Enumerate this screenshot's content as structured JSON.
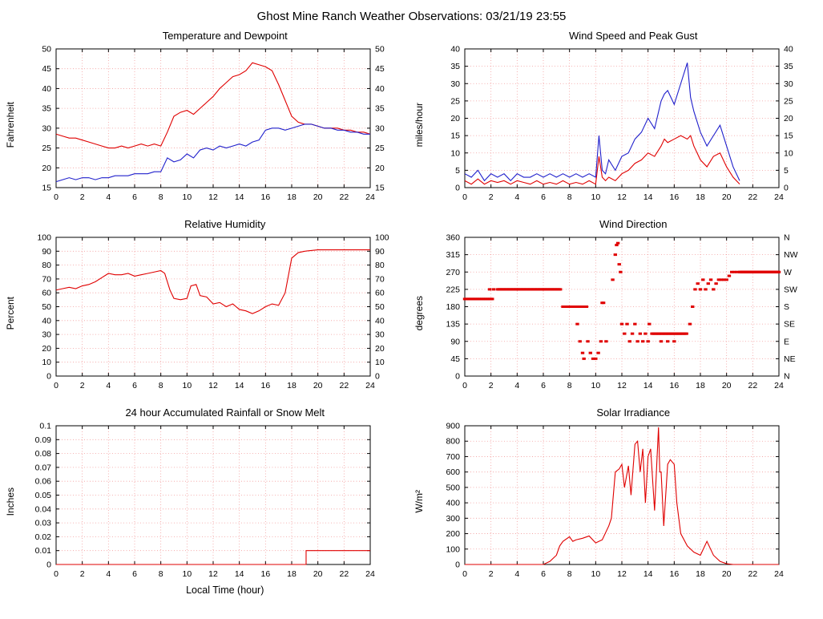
{
  "page_title": "Ghost Mine Ranch Weather Observations: 03/21/19 23:55",
  "colors": {
    "grid": "#f29b9b",
    "frame": "#000000",
    "red": "#e00000",
    "blue": "#2020cc"
  },
  "chart_data": [
    {
      "title": "Temperature and Dewpoint",
      "ylabel": "Fahrenheit",
      "type": "line",
      "xlim": [
        0,
        24
      ],
      "xticks": [
        0,
        2,
        4,
        6,
        8,
        10,
        12,
        14,
        16,
        18,
        20,
        22,
        24
      ],
      "ylim": [
        15,
        50
      ],
      "yticks": [
        15,
        20,
        25,
        30,
        35,
        40,
        45,
        50
      ],
      "right_labels": true,
      "series": [
        {
          "name": "Temperature",
          "color": "#e00000",
          "x0": 0,
          "dx": 0.5,
          "y": [
            28.5,
            28,
            27.5,
            27.5,
            27,
            26.5,
            26,
            25.5,
            25,
            25,
            25.5,
            25,
            25.5,
            26,
            25.5,
            26,
            25.5,
            29,
            33,
            34,
            34.5,
            33.5,
            35,
            36.5,
            38,
            40,
            41.5,
            43,
            43.5,
            44.5,
            46.5,
            46,
            45.5,
            44.5,
            41,
            37,
            33,
            31.5,
            31,
            31,
            30.5,
            30,
            30,
            30,
            29.5,
            29.5,
            29,
            29,
            28.5
          ]
        },
        {
          "name": "Dewpoint",
          "color": "#2020cc",
          "x0": 0,
          "dx": 0.5,
          "y": [
            16.5,
            17,
            17.5,
            17,
            17.5,
            17.5,
            17,
            17.5,
            17.5,
            18,
            18,
            18,
            18.5,
            18.5,
            18.5,
            19,
            19,
            22.5,
            21.5,
            22,
            23.5,
            22.5,
            24.5,
            25,
            24.5,
            25.5,
            25,
            25.5,
            26,
            25.5,
            26.5,
            27,
            29.5,
            30,
            30,
            29.5,
            30,
            30.5,
            31,
            31,
            30.5,
            30,
            30,
            29.5,
            29.5,
            29,
            29,
            28.5,
            28.5
          ]
        }
      ]
    },
    {
      "title": "Wind Speed and Peak Gust",
      "ylabel": "miles/hour",
      "type": "line",
      "xlim": [
        0,
        24
      ],
      "xticks": [
        0,
        2,
        4,
        6,
        8,
        10,
        12,
        14,
        16,
        18,
        20,
        22,
        24
      ],
      "ylim": [
        0,
        40
      ],
      "yticks": [
        0,
        5,
        10,
        15,
        20,
        25,
        30,
        35,
        40
      ],
      "right_labels": true,
      "series": [
        {
          "name": "Wind Speed",
          "color": "#e00000",
          "x": [
            0,
            0.5,
            1,
            1.5,
            2,
            2.5,
            3,
            3.5,
            4,
            4.5,
            5,
            5.5,
            6,
            6.5,
            7,
            7.5,
            8,
            8.5,
            9,
            9.5,
            10,
            10.25,
            10.5,
            10.75,
            11,
            11.5,
            12,
            12.5,
            13,
            13.5,
            14,
            14.5,
            15,
            15.25,
            15.5,
            16,
            16.5,
            17,
            17.25,
            17.5,
            18,
            18.5,
            19,
            19.5,
            20,
            20.5,
            21
          ],
          "y": [
            2,
            1,
            2.5,
            1,
            2,
            1.5,
            2,
            1,
            2,
            1.5,
            1,
            2,
            1,
            1.5,
            1,
            2,
            1,
            1.5,
            1,
            2,
            1,
            9,
            3,
            2,
            3,
            2,
            4,
            5,
            7,
            8,
            10,
            9,
            12,
            14,
            13,
            14,
            15,
            14,
            15,
            12,
            8,
            6,
            9,
            10,
            6,
            3,
            1
          ]
        },
        {
          "name": "Peak Gust",
          "color": "#2020cc",
          "x": [
            0,
            0.5,
            1,
            1.5,
            2,
            2.5,
            3,
            3.5,
            4,
            4.5,
            5,
            5.5,
            6,
            6.5,
            7,
            7.5,
            8,
            8.5,
            9,
            9.5,
            10,
            10.25,
            10.5,
            10.75,
            11,
            11.5,
            12,
            12.5,
            13,
            13.5,
            14,
            14.5,
            15,
            15.25,
            15.5,
            16,
            16.5,
            17,
            17.25,
            17.5,
            18,
            18.5,
            19,
            19.5,
            20,
            20.5,
            21
          ],
          "y": [
            4,
            3,
            5,
            2,
            4,
            3,
            4,
            2,
            4,
            3,
            3,
            4,
            3,
            4,
            3,
            4,
            3,
            4,
            3,
            4,
            3,
            15,
            5,
            4,
            8,
            5,
            9,
            10,
            14,
            16,
            20,
            17,
            25,
            27,
            28,
            24,
            30,
            36,
            26,
            22,
            16,
            12,
            15,
            18,
            12,
            6,
            2
          ]
        }
      ]
    },
    {
      "title": "Relative Humidity",
      "ylabel": "Percent",
      "type": "line",
      "xlim": [
        0,
        24
      ],
      "xticks": [
        0,
        2,
        4,
        6,
        8,
        10,
        12,
        14,
        16,
        18,
        20,
        22,
        24
      ],
      "ylim": [
        0,
        100
      ],
      "yticks": [
        0,
        10,
        20,
        30,
        40,
        50,
        60,
        70,
        80,
        90,
        100
      ],
      "right_labels": true,
      "series": [
        {
          "name": "Relative Humidity",
          "color": "#e00000",
          "x": [
            0,
            0.5,
            1,
            1.5,
            2,
            2.5,
            3,
            3.5,
            4,
            4.5,
            5,
            5.5,
            6,
            6.5,
            7,
            7.5,
            8,
            8.3,
            8.7,
            9,
            9.5,
            10,
            10.3,
            10.7,
            11,
            11.5,
            12,
            12.5,
            13,
            13.5,
            14,
            14.5,
            15,
            15.5,
            16,
            16.5,
            17,
            17.5,
            18,
            18.5,
            19,
            20,
            21,
            22,
            23,
            24
          ],
          "y": [
            62,
            63,
            64,
            63,
            65,
            66,
            68,
            71,
            74,
            73,
            73,
            74,
            72,
            73,
            74,
            75,
            76,
            74,
            62,
            56,
            55,
            56,
            65,
            66,
            58,
            57,
            52,
            53,
            50,
            52,
            48,
            47,
            45,
            47,
            50,
            52,
            51,
            60,
            85,
            89,
            90,
            91,
            91,
            91,
            91,
            91
          ]
        }
      ]
    },
    {
      "title": "Wind Direction",
      "ylabel": "degrees",
      "type": "scatter",
      "xlim": [
        0,
        24
      ],
      "xticks": [
        0,
        2,
        4,
        6,
        8,
        10,
        12,
        14,
        16,
        18,
        20,
        22,
        24
      ],
      "ylim": [
        0,
        360
      ],
      "yticks": [
        0,
        45,
        90,
        135,
        180,
        225,
        270,
        315,
        360
      ],
      "right_labels": [
        "N",
        "NE",
        "E",
        "SE",
        "S",
        "SW",
        "W",
        "NW",
        "N"
      ],
      "series": [
        {
          "name": "Wind Direction",
          "color": "#e00000",
          "runs": [
            {
              "x0": 0.0,
              "x1": 2.1,
              "step": 0.1,
              "y": 200
            },
            {
              "x0": 2.5,
              "x1": 7.3,
              "step": 0.08,
              "y": 225
            },
            {
              "x0": 7.5,
              "x1": 9.3,
              "step": 0.1,
              "y": 180
            },
            {
              "x0": 14.3,
              "x1": 17.0,
              "step": 0.08,
              "y": 110
            },
            {
              "x0": 21.0,
              "x1": 24.0,
              "step": 0.05,
              "y": 270
            }
          ],
          "x": [
            1.9,
            2.2,
            8.6,
            8.8,
            9.0,
            9.1,
            9.4,
            9.6,
            9.8,
            10.0,
            10.2,
            10.4,
            10.5,
            10.6,
            10.8,
            11.3,
            11.5,
            11.6,
            11.7,
            11.8,
            11.9,
            12.0,
            12.2,
            12.4,
            12.6,
            12.8,
            13.0,
            13.2,
            13.4,
            13.6,
            13.8,
            14.0,
            14.1,
            15.0,
            15.5,
            16.0,
            17.2,
            17.4,
            17.6,
            17.8,
            18.0,
            18.2,
            18.4,
            18.6,
            18.8,
            19.0,
            19.2,
            19.4,
            19.6,
            19.8,
            20.0,
            20.2,
            20.4,
            20.6,
            20.8
          ],
          "y": [
            225,
            225,
            135,
            90,
            60,
            45,
            90,
            60,
            45,
            45,
            60,
            90,
            190,
            190,
            90,
            250,
            315,
            340,
            345,
            290,
            270,
            135,
            110,
            135,
            90,
            110,
            135,
            90,
            110,
            90,
            110,
            90,
            135,
            90,
            90,
            90,
            135,
            180,
            225,
            240,
            225,
            250,
            225,
            240,
            250,
            225,
            240,
            250,
            250,
            250,
            250,
            260,
            270,
            270,
            270
          ]
        }
      ]
    },
    {
      "title": "24 hour Accumulated Rainfall or Snow Melt",
      "ylabel": "Inches",
      "xlabel": "Local Time (hour)",
      "type": "line",
      "xlim": [
        0,
        24
      ],
      "xticks": [
        0,
        2,
        4,
        6,
        8,
        10,
        12,
        14,
        16,
        18,
        20,
        22,
        24
      ],
      "ylim": [
        0,
        0.1
      ],
      "yticks": [
        0,
        0.01,
        0.02,
        0.03,
        0.04,
        0.05,
        0.06,
        0.07,
        0.08,
        0.09,
        0.1
      ],
      "ytick_labels": [
        "0",
        "0.01",
        "0.02",
        "0.03",
        "0.04",
        "0.05",
        "0.06",
        "0.07",
        "0.08",
        "0.09",
        "0.1"
      ],
      "right_labels": false,
      "series": [
        {
          "name": "Rainfall",
          "color": "#e00000",
          "x": [
            0,
            19.1,
            19.1,
            24
          ],
          "y": [
            0,
            0,
            0.01,
            0.01
          ]
        }
      ]
    },
    {
      "title": "Solar Irradiance",
      "ylabel": "W/m²",
      "type": "line",
      "xlim": [
        0,
        24
      ],
      "xticks": [
        0,
        2,
        4,
        6,
        8,
        10,
        12,
        14,
        16,
        18,
        20,
        22,
        24
      ],
      "ylim": [
        0,
        900
      ],
      "yticks": [
        0,
        100,
        200,
        300,
        400,
        500,
        600,
        700,
        800,
        900
      ],
      "right_labels": false,
      "series": [
        {
          "name": "Solar Irradiance",
          "color": "#e00000",
          "x": [
            0,
            1,
            2,
            3,
            4,
            5,
            6,
            6.5,
            7,
            7.25,
            7.5,
            8,
            8.25,
            8.5,
            9,
            9.5,
            10,
            10.25,
            10.5,
            11,
            11.2,
            11.5,
            11.8,
            12,
            12.2,
            12.5,
            12.7,
            13,
            13.2,
            13.4,
            13.6,
            13.8,
            14,
            14.2,
            14.5,
            14.8,
            14.9,
            15,
            15.2,
            15.5,
            15.7,
            16,
            16.2,
            16.5,
            17,
            17.5,
            18,
            18.5,
            19,
            19.5,
            20,
            20.5,
            21,
            22,
            23,
            24
          ],
          "y": [
            0,
            0,
            0,
            0,
            0,
            0,
            0,
            20,
            60,
            120,
            150,
            180,
            150,
            160,
            170,
            185,
            140,
            150,
            160,
            250,
            300,
            600,
            620,
            650,
            500,
            640,
            450,
            780,
            800,
            600,
            750,
            400,
            700,
            750,
            350,
            890,
            600,
            600,
            250,
            650,
            680,
            650,
            400,
            200,
            120,
            80,
            60,
            150,
            60,
            20,
            5,
            0,
            0,
            0,
            0,
            0
          ]
        }
      ]
    }
  ]
}
